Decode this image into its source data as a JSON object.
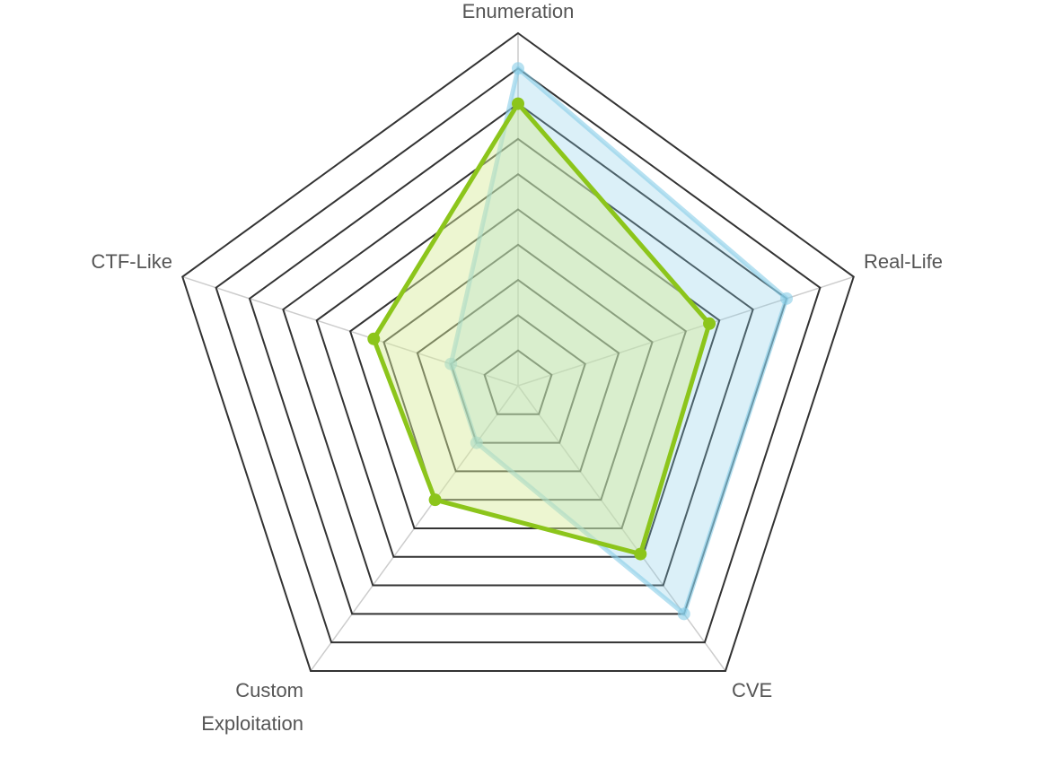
{
  "chart_data": {
    "type": "radar",
    "categories": [
      "Enumeration",
      "Real-Life",
      "CVE",
      "Custom Exploitation",
      "CTF-Like"
    ],
    "rlim": [
      0,
      10
    ],
    "rticks": [
      1,
      2,
      3,
      4,
      5,
      6,
      7,
      8,
      9,
      10
    ],
    "series": [
      {
        "color": "#87cde8",
        "values": [
          9,
          8,
          8,
          2,
          2
        ]
      },
      {
        "color": "#8cc51b",
        "values": [
          8,
          5.7,
          5.9,
          4,
          4.3
        ]
      }
    ]
  }
}
